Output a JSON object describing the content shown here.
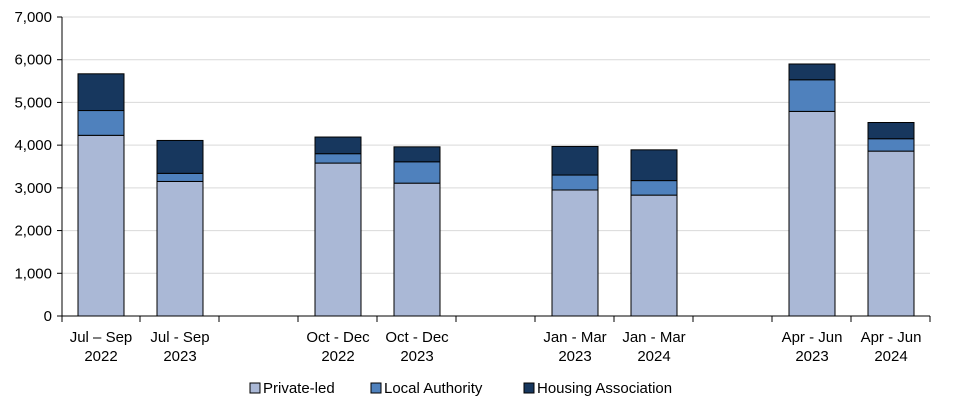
{
  "chart_data": {
    "type": "bar",
    "stacked": true,
    "categories": [
      [
        "Jul – Sep",
        "2022"
      ],
      [
        "Jul - Sep",
        "2023"
      ],
      [
        "Oct - Dec",
        "2022"
      ],
      [
        "Oct - Dec",
        "2023"
      ],
      [
        "Jan - Mar",
        "2023"
      ],
      [
        "Jan - Mar",
        "2024"
      ],
      [
        "Apr - Jun",
        "2023"
      ],
      [
        "Apr - Jun",
        "2024"
      ]
    ],
    "series": [
      {
        "name": "Private-led",
        "color": "#aab8d6",
        "values": [
          4230,
          3150,
          3580,
          3110,
          2950,
          2830,
          4790,
          3860
        ]
      },
      {
        "name": "Local Authority",
        "color": "#4f81bd",
        "values": [
          580,
          190,
          220,
          500,
          350,
          340,
          740,
          290
        ]
      },
      {
        "name": "Housing Association",
        "color": "#17375e",
        "values": [
          860,
          770,
          390,
          350,
          670,
          720,
          370,
          380
        ]
      }
    ],
    "ylim": [
      0,
      7000
    ],
    "yticks": [
      "0",
      "1,000",
      "2,000",
      "3,000",
      "4,000",
      "5,000",
      "6,000",
      "7,000"
    ],
    "grid": true,
    "legend_position": "bottom"
  }
}
